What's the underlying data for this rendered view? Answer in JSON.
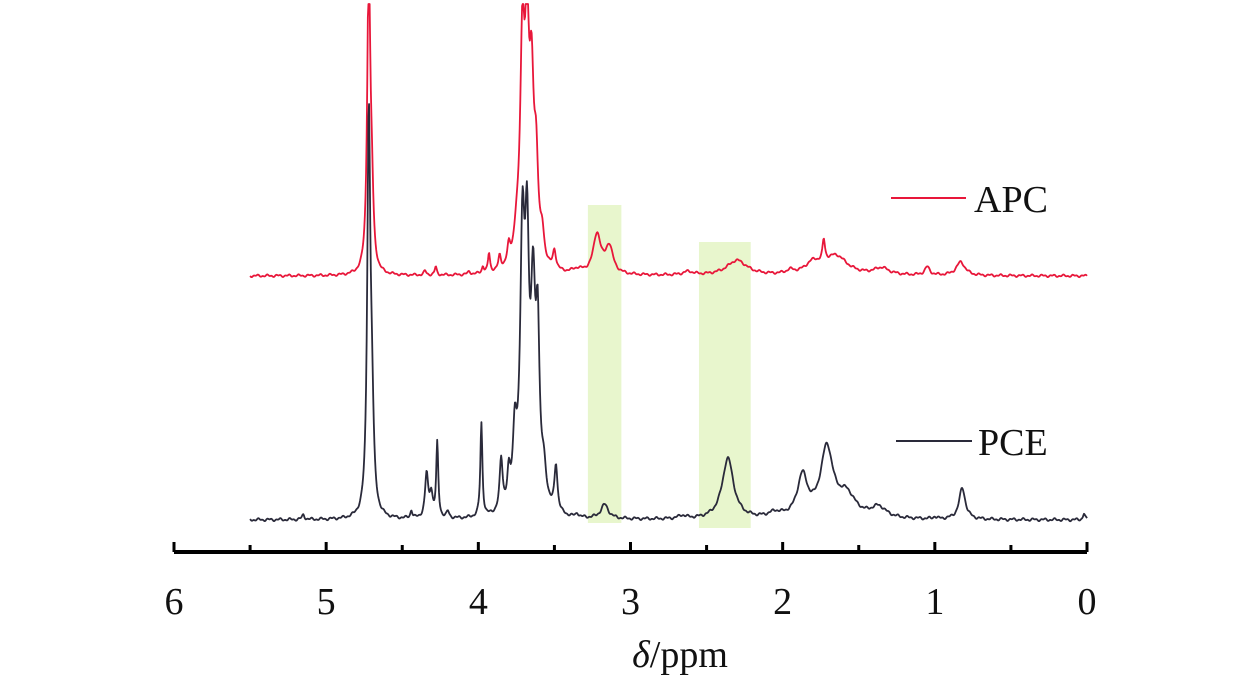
{
  "chart_data": {
    "type": "line",
    "xlabel_symbol": "δ",
    "xlabel_unit": "/ppm",
    "x_reversed": true,
    "xlim": [
      6,
      0
    ],
    "x_ticks": [
      "6",
      "5",
      "4",
      "3",
      "2",
      "1",
      "0"
    ],
    "grid": false,
    "legend": "right, beside each trace",
    "highlight_regions": [
      {
        "from": 3.28,
        "to": 3.06,
        "color": "#e4f4c4"
      },
      {
        "from": 2.55,
        "to": 2.21,
        "color": "#e4f4c4"
      }
    ],
    "series": [
      {
        "name": "APC",
        "color": "#e8173a",
        "x_range": [
          5.5,
          0.0
        ],
        "baseline": 0,
        "peaks": [
          {
            "x": 4.72,
            "h": 4.6,
            "w": 0.012
          },
          {
            "x": 4.7,
            "h": 0.9,
            "w": 0.012
          },
          {
            "x": 4.35,
            "h": 0.06,
            "w": 0.01
          },
          {
            "x": 4.28,
            "h": 0.12,
            "w": 0.008
          },
          {
            "x": 4.06,
            "h": 0.04,
            "w": 0.01
          },
          {
            "x": 3.97,
            "h": 0.1,
            "w": 0.008
          },
          {
            "x": 3.93,
            "h": 0.28,
            "w": 0.008
          },
          {
            "x": 3.86,
            "h": 0.2,
            "w": 0.01
          },
          {
            "x": 3.8,
            "h": 0.26,
            "w": 0.012
          },
          {
            "x": 3.75,
            "h": 0.35,
            "w": 0.02
          },
          {
            "x": 3.71,
            "h": 3.2,
            "w": 0.018
          },
          {
            "x": 3.68,
            "h": 2.9,
            "w": 0.015
          },
          {
            "x": 3.65,
            "h": 2.4,
            "w": 0.018
          },
          {
            "x": 3.62,
            "h": 1.3,
            "w": 0.016
          },
          {
            "x": 3.58,
            "h": 0.4,
            "w": 0.015
          },
          {
            "x": 3.5,
            "h": 0.28,
            "w": 0.012
          },
          {
            "x": 3.22,
            "h": 0.58,
            "w": 0.03
          },
          {
            "x": 3.14,
            "h": 0.4,
            "w": 0.03
          },
          {
            "x": 3.35,
            "h": 0.06,
            "w": 0.04
          },
          {
            "x": 2.62,
            "h": 0.05,
            "w": 0.04
          },
          {
            "x": 2.3,
            "h": 0.22,
            "w": 0.08
          },
          {
            "x": 1.95,
            "h": 0.05,
            "w": 0.03
          },
          {
            "x": 1.8,
            "h": 0.16,
            "w": 0.06
          },
          {
            "x": 1.73,
            "h": 0.32,
            "w": 0.01
          },
          {
            "x": 1.65,
            "h": 0.28,
            "w": 0.09
          },
          {
            "x": 1.35,
            "h": 0.1,
            "w": 0.06
          },
          {
            "x": 1.05,
            "h": 0.12,
            "w": 0.02
          },
          {
            "x": 0.83,
            "h": 0.2,
            "w": 0.035
          }
        ]
      },
      {
        "name": "PCE",
        "color": "#2a2a3a",
        "x_range": [
          5.5,
          0.0
        ],
        "baseline": 0,
        "peaks": [
          {
            "x": 5.15,
            "h": 0.06,
            "w": 0.01
          },
          {
            "x": 4.72,
            "h": 5.0,
            "w": 0.012
          },
          {
            "x": 4.7,
            "h": 1.2,
            "w": 0.014
          },
          {
            "x": 4.44,
            "h": 0.1,
            "w": 0.008
          },
          {
            "x": 4.34,
            "h": 0.56,
            "w": 0.012
          },
          {
            "x": 4.31,
            "h": 0.3,
            "w": 0.012
          },
          {
            "x": 4.27,
            "h": 0.95,
            "w": 0.008
          },
          {
            "x": 4.2,
            "h": 0.08,
            "w": 0.01
          },
          {
            "x": 3.98,
            "h": 1.2,
            "w": 0.008
          },
          {
            "x": 3.85,
            "h": 0.66,
            "w": 0.012
          },
          {
            "x": 3.8,
            "h": 0.4,
            "w": 0.012
          },
          {
            "x": 3.76,
            "h": 0.9,
            "w": 0.015
          },
          {
            "x": 3.71,
            "h": 3.3,
            "w": 0.018
          },
          {
            "x": 3.68,
            "h": 2.9,
            "w": 0.016
          },
          {
            "x": 3.64,
            "h": 2.5,
            "w": 0.018
          },
          {
            "x": 3.61,
            "h": 2.0,
            "w": 0.014
          },
          {
            "x": 3.57,
            "h": 0.45,
            "w": 0.02
          },
          {
            "x": 3.49,
            "h": 0.6,
            "w": 0.012
          },
          {
            "x": 3.35,
            "h": 0.05,
            "w": 0.01
          },
          {
            "x": 3.17,
            "h": 0.18,
            "w": 0.03
          },
          {
            "x": 2.66,
            "h": 0.04,
            "w": 0.03
          },
          {
            "x": 2.36,
            "h": 0.78,
            "w": 0.045
          },
          {
            "x": 2.05,
            "h": 0.06,
            "w": 0.05
          },
          {
            "x": 1.87,
            "h": 0.52,
            "w": 0.04
          },
          {
            "x": 1.71,
            "h": 0.88,
            "w": 0.05
          },
          {
            "x": 1.58,
            "h": 0.28,
            "w": 0.07
          },
          {
            "x": 1.37,
            "h": 0.14,
            "w": 0.06
          },
          {
            "x": 1.0,
            "h": 0.03,
            "w": 0.01
          },
          {
            "x": 0.82,
            "h": 0.4,
            "w": 0.025
          },
          {
            "x": 0.02,
            "h": 0.08,
            "w": 0.008
          }
        ]
      }
    ]
  }
}
